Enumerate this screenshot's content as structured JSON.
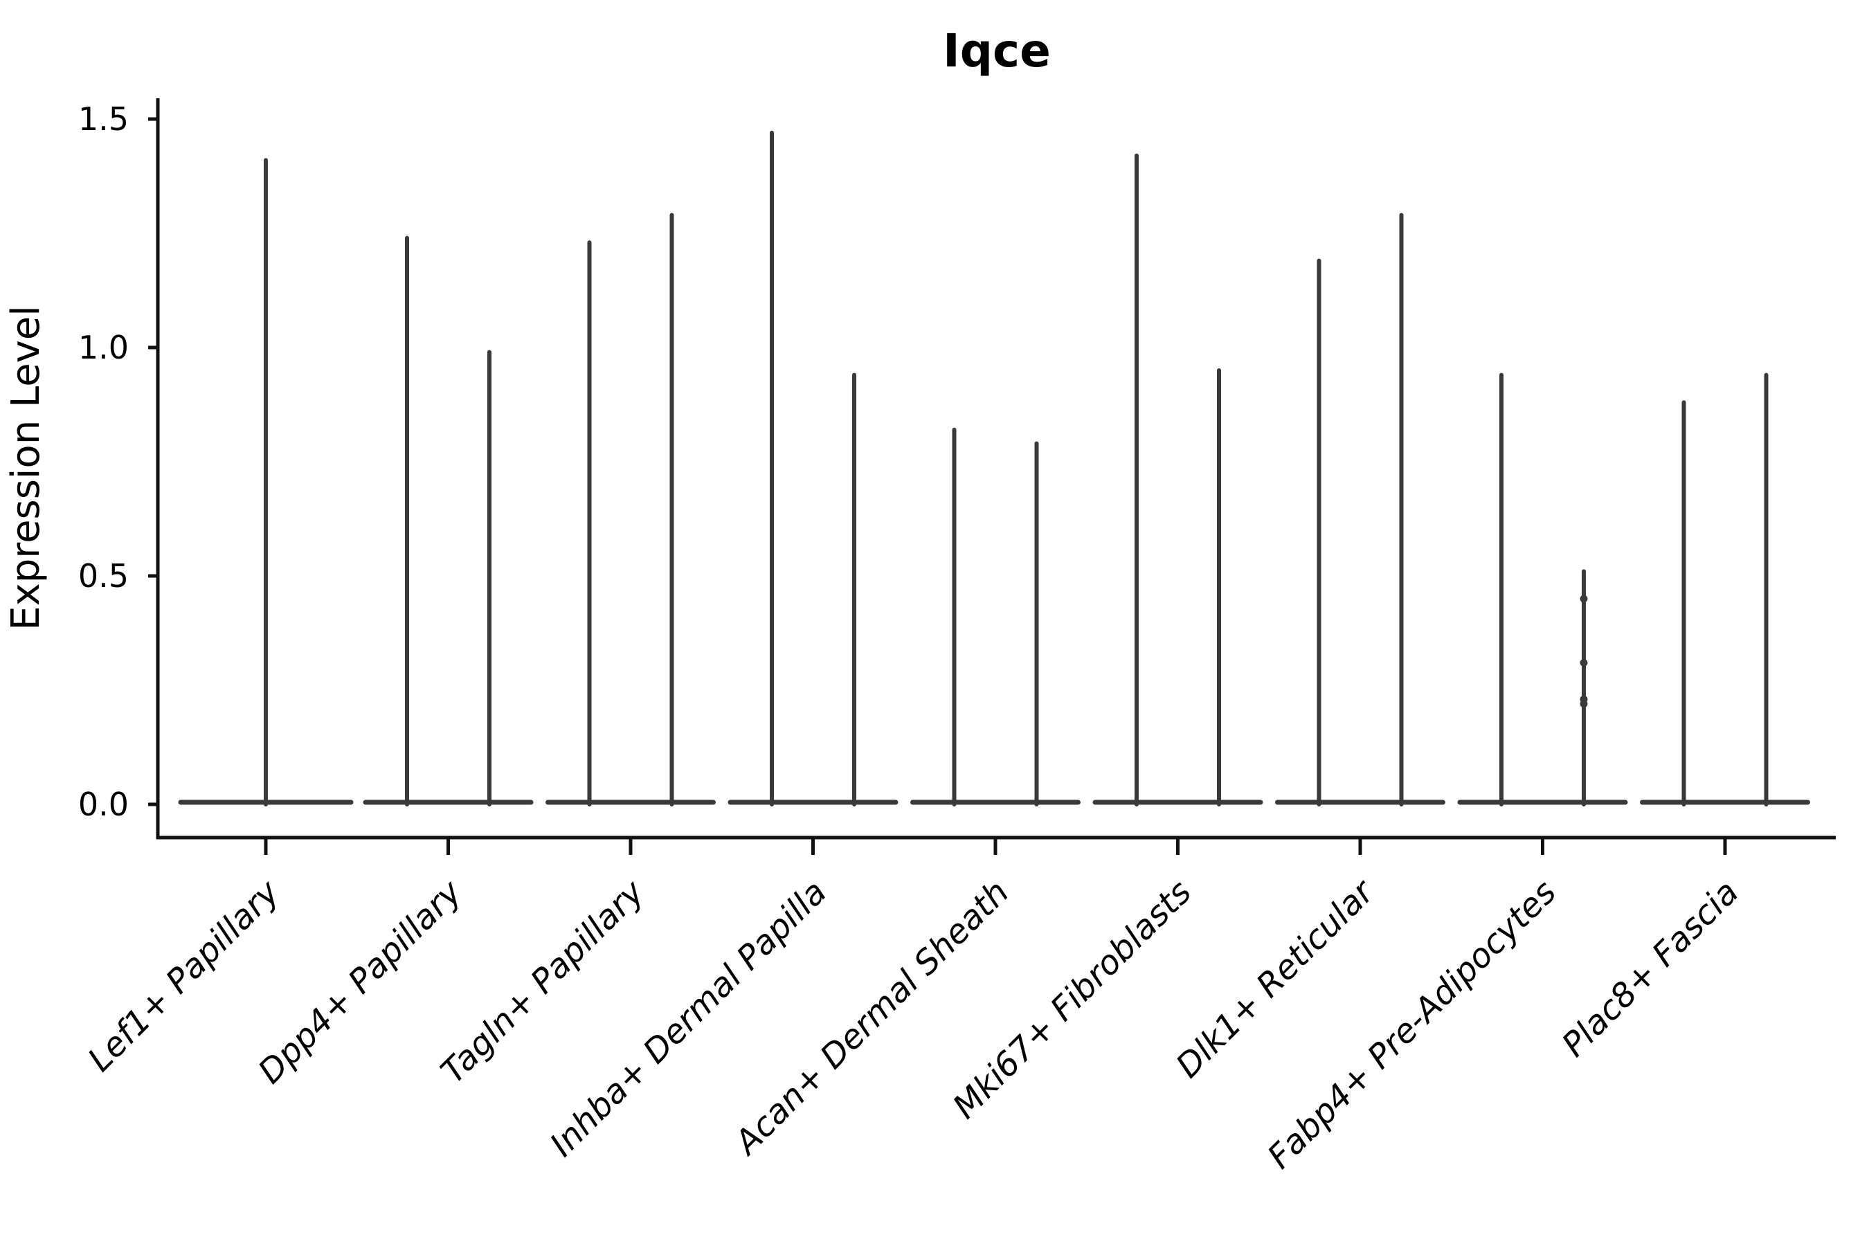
{
  "colors": {
    "text": "#000000",
    "spine": "#111111",
    "violin": "#3a3a3a",
    "background": "#ffffff"
  },
  "chart_data": {
    "type": "violin",
    "title": "Iqce",
    "xlabel": "",
    "ylabel": "Expression Level",
    "ylim": [
      -0.07,
      1.55
    ],
    "grid": false,
    "legend": "none",
    "base_value": 0.0,
    "yticks": [
      {
        "label": "0.0",
        "value": 0.0
      },
      {
        "label": "0.5",
        "value": 0.5
      },
      {
        "label": "1.0",
        "value": 1.0
      },
      {
        "label": "1.5",
        "value": 1.5
      }
    ],
    "categories": [
      {
        "label": "Lef1+ Papillary",
        "violins": [
          {
            "max": 1.41
          }
        ]
      },
      {
        "label": "Dpp4+ Papillary",
        "violins": [
          {
            "max": 1.24
          },
          {
            "max": 0.99
          }
        ]
      },
      {
        "label": "Tagln+ Papillary",
        "violins": [
          {
            "max": 1.23
          },
          {
            "max": 1.29
          }
        ]
      },
      {
        "label": "Inhba+ Dermal Papilla",
        "violins": [
          {
            "max": 1.47
          },
          {
            "max": 0.94
          }
        ]
      },
      {
        "label": "Acan+ Dermal Sheath",
        "violins": [
          {
            "max": 0.82
          },
          {
            "max": 0.79
          }
        ]
      },
      {
        "label": "Mki67+ Fibroblasts",
        "violins": [
          {
            "max": 1.42
          },
          {
            "max": 0.95
          }
        ]
      },
      {
        "label": "Dlk1+ Reticular",
        "violins": [
          {
            "max": 1.19
          },
          {
            "max": 1.29
          }
        ]
      },
      {
        "label": "Fabp4+ Pre-Adipocytes",
        "violins": [
          {
            "max": 0.94
          },
          {
            "max": 0.51,
            "points": [
              0.45,
              0.31,
              0.23,
              0.22
            ]
          }
        ]
      },
      {
        "label": "Plac8+ Fascia",
        "violins": [
          {
            "max": 0.88
          },
          {
            "max": 0.94
          }
        ]
      }
    ]
  }
}
